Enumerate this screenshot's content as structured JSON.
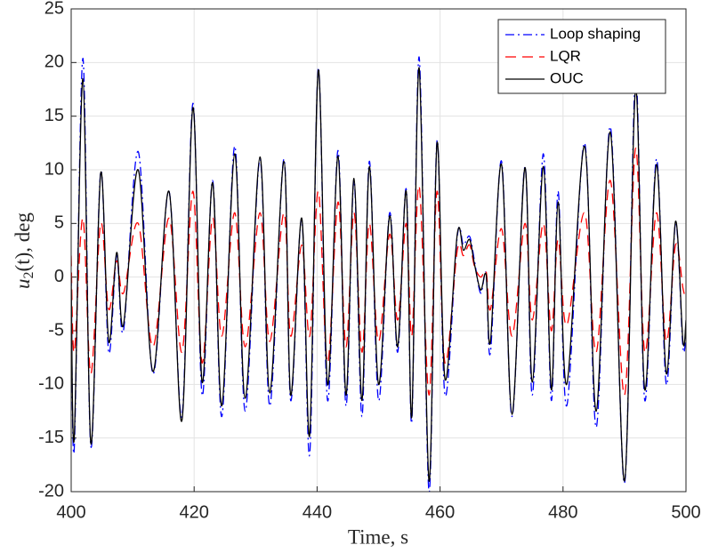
{
  "chart_data": {
    "type": "line",
    "xlabel": "Time, s",
    "ylabel": {
      "base": "u",
      "sub": "2",
      "rest": "(t), deg"
    },
    "x": [
      400,
      400.5,
      401.9,
      403.2,
      404.8,
      406.1,
      407.4,
      408.5,
      410.9,
      413.3,
      415.9,
      418,
      419.8,
      421.3,
      423,
      424.5,
      426.6,
      428.3,
      430.7,
      432.3,
      434.6,
      435.7,
      437.5,
      438.8,
      440.2,
      441.7,
      443.4,
      444.7,
      446,
      447.3,
      448.5,
      450,
      451.8,
      453.1,
      454.5,
      455.4,
      456.6,
      458.2,
      459.5,
      460.8,
      462.8,
      463.8,
      464.8,
      465.6,
      466.6,
      467.5,
      468.2,
      470,
      471.7,
      473.8,
      475,
      476.8,
      478.1,
      479.2,
      480.6,
      483.5,
      485.4,
      487.7,
      490,
      491.8,
      493.3,
      495.2,
      496.8,
      498.3,
      499.5,
      500
    ],
    "series": [
      {
        "name": "Loop shaping",
        "color": "#0000ff",
        "dash": "dashdot",
        "values": [
          0,
          -16,
          20.4,
          -15.8,
          9.8,
          -7,
          2,
          -5,
          11.7,
          -9,
          8,
          -13,
          16.2,
          -11,
          9,
          -13,
          12.2,
          -12.5,
          11,
          -12,
          11,
          -11.5,
          5.4,
          -16.5,
          19.5,
          -11.5,
          11.8,
          -12,
          9,
          -13,
          10.8,
          -11.5,
          6,
          -7,
          8.2,
          -13.5,
          20.5,
          -20,
          12.7,
          -11,
          3.8,
          3,
          3.8,
          1.5,
          -1.5,
          0.3,
          -7,
          10.8,
          -13,
          10.3,
          -11,
          11.5,
          -11.5,
          8,
          -12,
          12.5,
          -14,
          14,
          -19.2,
          18.7,
          -11.5,
          11,
          -10,
          5,
          -6.5,
          -5
        ]
      },
      {
        "name": "LQR",
        "color": "#ff0000",
        "dash": "dashed",
        "values": [
          2,
          -7,
          5.5,
          -9,
          5,
          -3,
          1.5,
          -1.5,
          5,
          -6.5,
          5.5,
          -7,
          8,
          -8,
          5.5,
          -5.5,
          6,
          -6.5,
          6,
          -6,
          6,
          -5.5,
          3,
          -5.5,
          8,
          -8,
          7,
          -6.5,
          6,
          -7,
          5,
          -6,
          4,
          -4,
          5,
          -5.5,
          8.5,
          -11,
          8,
          -8,
          2.5,
          2,
          3,
          1,
          0,
          0.5,
          -3,
          4.5,
          -5.5,
          5,
          -4,
          5,
          -5,
          3.5,
          -4.5,
          6,
          -7,
          9,
          -11,
          12,
          -7,
          6,
          -6,
          3,
          -1,
          -2
        ]
      },
      {
        "name": "OUC",
        "color": "#000000",
        "dash": "solid",
        "values": [
          0,
          -15,
          18.5,
          -15.5,
          9.7,
          -6,
          2.3,
          -4.5,
          10,
          -8.8,
          8,
          -13.4,
          15.8,
          -9.8,
          8.8,
          -12,
          11.5,
          -11.3,
          11.2,
          -10.8,
          10.8,
          -11,
          5.5,
          -14.7,
          19.3,
          -10,
          11.3,
          -11,
          9.2,
          -11.5,
          10.3,
          -10,
          5.7,
          -6.5,
          8,
          -13,
          19.5,
          -19,
          12.5,
          -9.5,
          4,
          2.5,
          3.5,
          1.2,
          -1.2,
          0.2,
          -6,
          10.5,
          -12.8,
          10.2,
          -9.8,
          10.3,
          -10.5,
          7,
          -10,
          12.2,
          -12.5,
          13.5,
          -19,
          17.5,
          -10.5,
          10.5,
          -9,
          5.2,
          -6,
          -4
        ]
      }
    ],
    "xlim": [
      400,
      500
    ],
    "xticks": [
      400,
      420,
      440,
      460,
      480,
      500
    ],
    "ylim": [
      -20,
      25
    ],
    "yticks": [
      -20,
      -15,
      -10,
      -5,
      0,
      5,
      10,
      15,
      20,
      25
    ],
    "grid": true,
    "legend": "upper right"
  }
}
